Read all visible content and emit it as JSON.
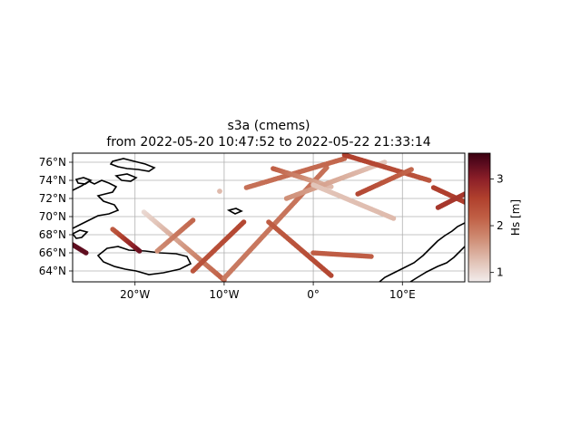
{
  "figure": {
    "title_line1": "s3a (cmems)",
    "title_line2": "from 2022-05-20 10:47:52 to 2022-05-22 21:33:14"
  },
  "map": {
    "lon_range": [
      -27,
      17
    ],
    "lat_range": [
      62.8,
      77.0
    ],
    "lon_ticks": [
      {
        "value": -20,
        "label": "20°W"
      },
      {
        "value": -10,
        "label": "10°W"
      },
      {
        "value": 0,
        "label": "0°"
      },
      {
        "value": 10,
        "label": "10°E"
      }
    ],
    "lat_ticks": [
      {
        "value": 64,
        "label": "64°N"
      },
      {
        "value": 66,
        "label": "66°N"
      },
      {
        "value": 68,
        "label": "68°N"
      },
      {
        "value": 70,
        "label": "70°N"
      },
      {
        "value": 72,
        "label": "72°N"
      },
      {
        "value": 74,
        "label": "74°N"
      },
      {
        "value": 76,
        "label": "76°N"
      }
    ],
    "gridlines": true,
    "land_color": "#ffffff",
    "coastline_color": "#000000"
  },
  "colorbar": {
    "label": "Hs [m]",
    "range": [
      0.8,
      3.55
    ],
    "ticks": [
      {
        "value": 1,
        "label": "1"
      },
      {
        "value": 2,
        "label": "2"
      },
      {
        "value": 3,
        "label": "3"
      }
    ],
    "colormap": [
      "#f2ecec",
      "#e2c4b8",
      "#cf8e76",
      "#c05f45",
      "#b0402d",
      "#8c1f28",
      "#5a0b1e",
      "#3a0010"
    ]
  },
  "chart_data": {
    "type": "scatter",
    "title": "s3a (cmems)\nfrom 2022-05-20 10:47:52 to 2022-05-22 21:33:14",
    "xlabel": "",
    "ylabel": "",
    "xlim": [
      -27,
      17
    ],
    "ylim": [
      62.8,
      77.0
    ],
    "color_variable": "Hs [m]",
    "color_range": [
      0.8,
      3.55
    ],
    "tracks": [
      {
        "start": [
          -27.0,
          66.9
        ],
        "end": [
          -25.5,
          66.0
        ],
        "hs": [
          3.3,
          3.3
        ]
      },
      {
        "start": [
          -22.5,
          68.6
        ],
        "end": [
          -19.5,
          66.2
        ],
        "hs": [
          2.2,
          3.2
        ]
      },
      {
        "start": [
          -19.0,
          70.5
        ],
        "end": [
          -10.0,
          63.0
        ],
        "hs": [
          1.0,
          2.2
        ]
      },
      {
        "start": [
          -17.5,
          66.2
        ],
        "end": [
          -13.5,
          69.6
        ],
        "hs": [
          1.7,
          2.1
        ]
      },
      {
        "start": [
          -13.5,
          64.0
        ],
        "end": [
          -7.8,
          69.4
        ],
        "hs": [
          2.3,
          2.5
        ]
      },
      {
        "start": [
          -10.5,
          72.8
        ],
        "end": [
          -10.5,
          72.8
        ],
        "hs": [
          1.3,
          1.3
        ]
      },
      {
        "start": [
          -10.0,
          63.2
        ],
        "end": [
          1.5,
          75.4
        ],
        "hs": [
          1.9,
          2.0
        ]
      },
      {
        "start": [
          -7.5,
          73.2
        ],
        "end": [
          3.5,
          76.4
        ],
        "hs": [
          2.0,
          2.1
        ]
      },
      {
        "start": [
          -4.5,
          75.3
        ],
        "end": [
          2.0,
          73.3
        ],
        "hs": [
          2.2,
          1.3
        ]
      },
      {
        "start": [
          -5.0,
          69.4
        ],
        "end": [
          2.0,
          63.5
        ],
        "hs": [
          2.2,
          2.5
        ]
      },
      {
        "start": [
          -3.0,
          72.0
        ],
        "end": [
          8.0,
          76.0
        ],
        "hs": [
          1.7,
          1.2
        ]
      },
      {
        "start": [
          0.0,
          73.5
        ],
        "end": [
          9.0,
          69.8
        ],
        "hs": [
          1.2,
          1.3
        ]
      },
      {
        "start": [
          0.0,
          66.0
        ],
        "end": [
          6.5,
          65.6
        ],
        "hs": [
          2.2,
          2.2
        ]
      },
      {
        "start": [
          3.5,
          76.8
        ],
        "end": [
          13.0,
          74.0
        ],
        "hs": [
          2.6,
          2.3
        ]
      },
      {
        "start": [
          5.0,
          72.5
        ],
        "end": [
          11.0,
          75.2
        ],
        "hs": [
          2.5,
          2.1
        ]
      },
      {
        "start": [
          13.5,
          73.2
        ],
        "end": [
          17.0,
          71.6
        ],
        "hs": [
          2.6,
          2.6
        ]
      },
      {
        "start": [
          14.0,
          71.0
        ],
        "end": [
          17.0,
          72.5
        ],
        "hs": [
          2.7,
          2.7
        ]
      }
    ]
  }
}
